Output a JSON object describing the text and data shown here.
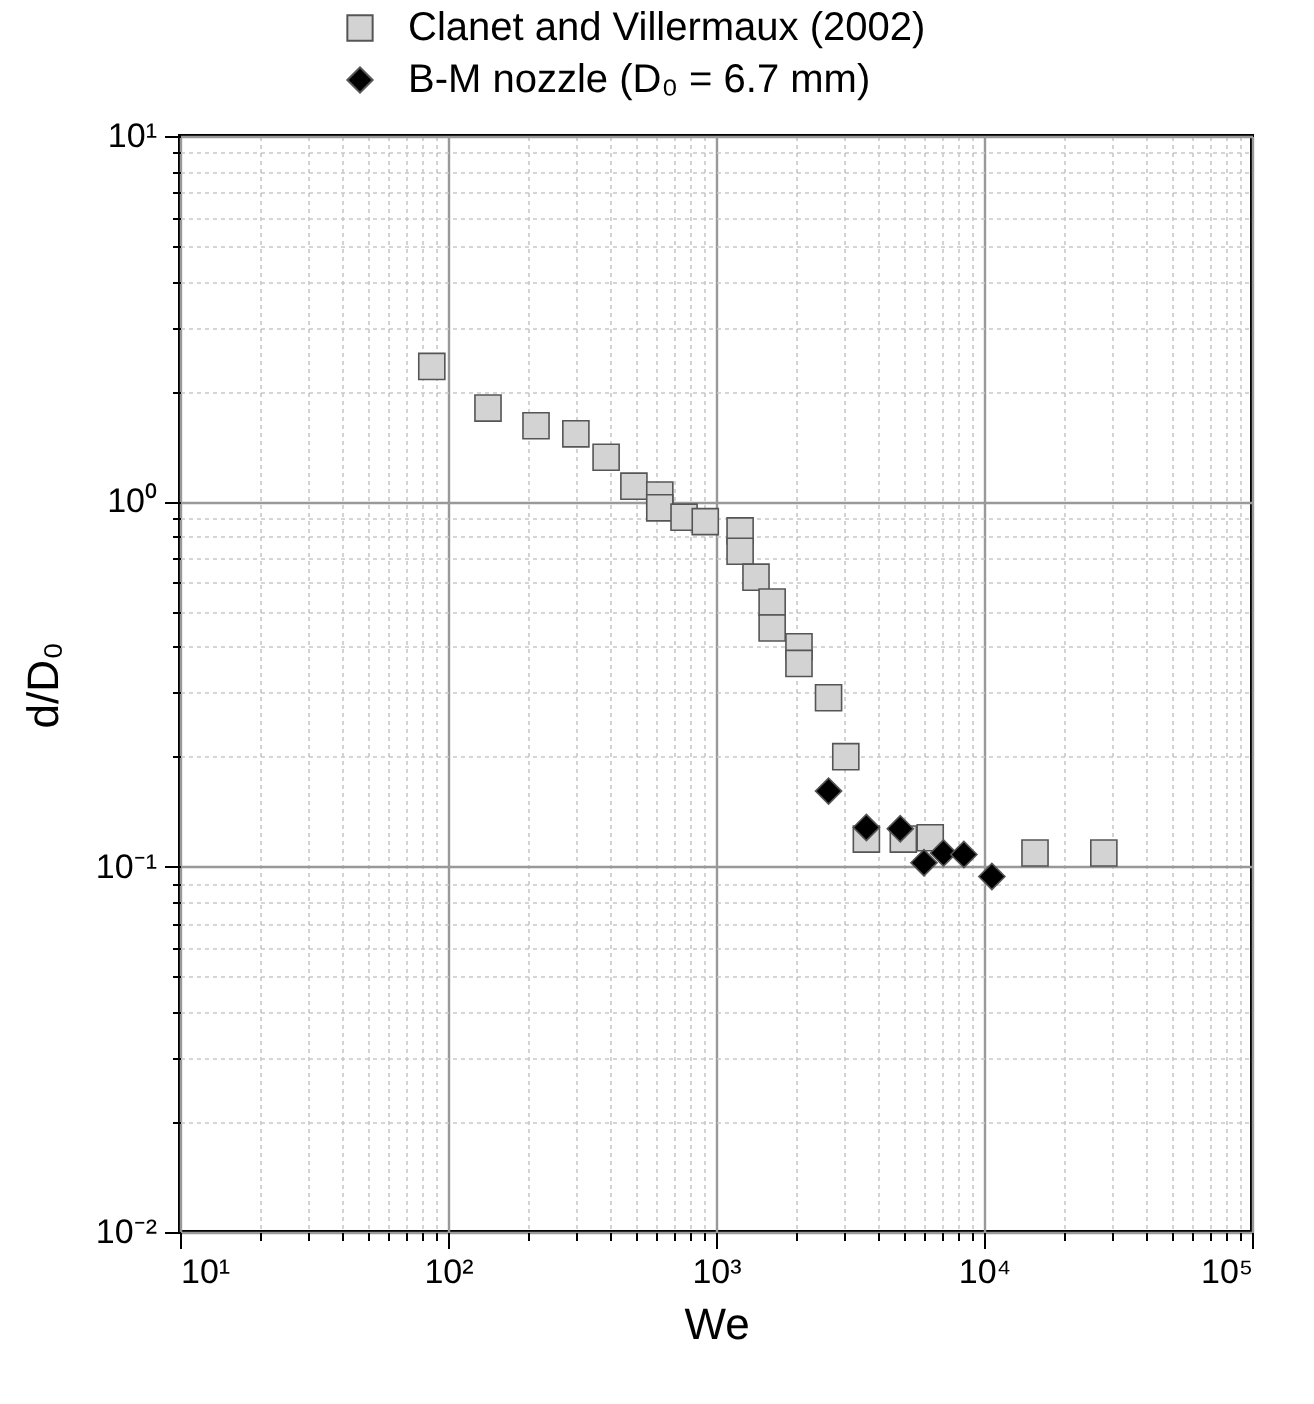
{
  "chart_data": {
    "type": "scatter",
    "xlabel": "We",
    "ylabel": "d/D₀",
    "series": [
      {
        "name": "Clanet and Villermaux (2002)",
        "color": "#d3d3d3",
        "marker": "square",
        "x": [
          87,
          141,
          213,
          300,
          389,
          494,
          617,
          617,
          760,
          912,
          1230,
          1230,
          1410,
          1620,
          1620,
          2040,
          2040,
          2630,
          3050,
          3640,
          5000,
          6300,
          15500,
          28000
        ],
        "values": [
          2.34,
          1.8,
          1.61,
          1.53,
          1.32,
          1.1,
          1.04,
          0.96,
          0.905,
          0.88,
          0.83,
          0.73,
          0.62,
          0.53,
          0.45,
          0.4,
          0.36,
          0.29,
          0.2,
          0.119,
          0.119,
          0.12,
          0.109,
          0.109
        ]
      },
      {
        "name": "B-M nozzle (D₀ = 6.7 mm)",
        "color": "#000000",
        "marker": "diamond",
        "x": [
          2630,
          3640,
          4870,
          5970,
          7060,
          8410,
          10700
        ],
        "values": [
          0.161,
          0.128,
          0.127,
          0.1025,
          0.109,
          0.108,
          0.094
        ]
      }
    ],
    "log": "xy",
    "xlim": [
      10,
      100000
    ],
    "xticks": [
      {
        "value": 10,
        "label": "10¹"
      },
      {
        "value": 20,
        "label": null
      },
      {
        "value": 30,
        "label": null
      },
      {
        "value": 40,
        "label": null
      },
      {
        "value": 50,
        "label": null
      },
      {
        "value": 60,
        "label": null
      },
      {
        "value": 70,
        "label": null
      },
      {
        "value": 80,
        "label": null
      },
      {
        "value": 90,
        "label": null
      },
      {
        "value": 100,
        "label": "10²"
      },
      {
        "value": 200,
        "label": null
      },
      {
        "value": 300,
        "label": null
      },
      {
        "value": 400,
        "label": null
      },
      {
        "value": 500,
        "label": null
      },
      {
        "value": 600,
        "label": null
      },
      {
        "value": 700,
        "label": null
      },
      {
        "value": 800,
        "label": null
      },
      {
        "value": 900,
        "label": null
      },
      {
        "value": 1000,
        "label": "10³"
      },
      {
        "value": 2000,
        "label": null
      },
      {
        "value": 3000,
        "label": null
      },
      {
        "value": 4000,
        "label": null
      },
      {
        "value": 5000,
        "label": null
      },
      {
        "value": 6000,
        "label": null
      },
      {
        "value": 7000,
        "label": null
      },
      {
        "value": 8000,
        "label": null
      },
      {
        "value": 9000,
        "label": null
      },
      {
        "value": 10000,
        "label": "10⁴"
      },
      {
        "value": 20000,
        "label": null
      },
      {
        "value": 30000,
        "label": null
      },
      {
        "value": 40000,
        "label": null
      },
      {
        "value": 50000,
        "label": null
      },
      {
        "value": 60000,
        "label": null
      },
      {
        "value": 70000,
        "label": null
      },
      {
        "value": 80000,
        "label": null
      },
      {
        "value": 90000,
        "label": null
      },
      {
        "value": 100000,
        "label": "10⁵"
      }
    ],
    "ylim": [
      0.01,
      10
    ],
    "yticks": [
      {
        "value": 0.01,
        "label": "10⁻²"
      },
      {
        "value": 0.02,
        "label": null
      },
      {
        "value": 0.03,
        "label": null
      },
      {
        "value": 0.04,
        "label": null
      },
      {
        "value": 0.05,
        "label": null
      },
      {
        "value": 0.06,
        "label": null
      },
      {
        "value": 0.07,
        "label": null
      },
      {
        "value": 0.08,
        "label": null
      },
      {
        "value": 0.09,
        "label": null
      },
      {
        "value": 0.1,
        "label": "10⁻¹"
      },
      {
        "value": 0.2,
        "label": null
      },
      {
        "value": 0.3,
        "label": null
      },
      {
        "value": 0.4,
        "label": null
      },
      {
        "value": 0.5,
        "label": null
      },
      {
        "value": 0.6,
        "label": null
      },
      {
        "value": 0.7,
        "label": null
      },
      {
        "value": 0.8,
        "label": null
      },
      {
        "value": 0.9,
        "label": null
      },
      {
        "value": 1,
        "label": "10⁰"
      },
      {
        "value": 2,
        "label": null
      },
      {
        "value": 3,
        "label": null
      },
      {
        "value": 4,
        "label": null
      },
      {
        "value": 5,
        "label": null
      },
      {
        "value": 6,
        "label": null
      },
      {
        "value": 7,
        "label": null
      },
      {
        "value": 8,
        "label": null
      },
      {
        "value": 9,
        "label": null
      },
      {
        "value": 10,
        "label": "10¹"
      }
    ],
    "grid": true,
    "legend": "top"
  }
}
